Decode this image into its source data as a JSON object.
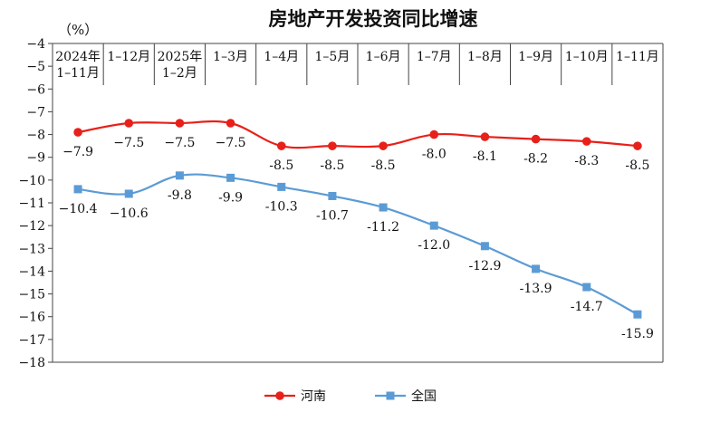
{
  "chart_data": {
    "type": "line",
    "title": "房地产开发投资同比增速",
    "unit_label": "（%）",
    "categories": [
      [
        "2024年",
        "1–11月"
      ],
      [
        "1–12月"
      ],
      [
        "2025年",
        "1–2月"
      ],
      [
        "1–3月"
      ],
      [
        "1–4月"
      ],
      [
        "1–5月"
      ],
      [
        "1–6月"
      ],
      [
        "1–7月"
      ],
      [
        "1–8月"
      ],
      [
        "1–9月"
      ],
      [
        "1–10月"
      ],
      [
        "1–11月"
      ]
    ],
    "ylim": [
      -18,
      -4
    ],
    "yticks": [
      -4,
      -5,
      -6,
      -7,
      -8,
      -9,
      -10,
      -11,
      -12,
      -13,
      -14,
      -15,
      -16,
      -17,
      -18
    ],
    "ytick_labels": [
      "−4",
      "−5",
      "−6",
      "−7",
      "−8",
      "−9",
      "−10",
      "−11",
      "−12",
      "−13",
      "−14",
      "−15",
      "−16",
      "−17",
      "−18"
    ],
    "series": [
      {
        "name": "河南",
        "color": "#e8201a",
        "marker": "circle",
        "values": [
          -7.9,
          -7.5,
          -7.5,
          -7.5,
          -8.5,
          -8.5,
          -8.5,
          -8.0,
          -8.1,
          -8.2,
          -8.3,
          -8.5
        ],
        "labels": [
          "−7.9",
          "−7.5",
          "−7.5",
          "−7.5",
          "-8.5",
          "-8.5",
          "-8.5",
          "-8.0",
          "-8.1",
          "-8.2",
          "-8.3",
          "-8.5"
        ]
      },
      {
        "name": "全国",
        "color": "#5b9bd5",
        "marker": "square",
        "values": [
          -10.4,
          -10.6,
          -9.8,
          -9.9,
          -10.3,
          -10.7,
          -11.2,
          -12.0,
          -12.9,
          -13.9,
          -14.7,
          -15.9
        ],
        "labels": [
          "−10.4",
          "−10.6",
          "-9.8",
          "-9.9",
          "-10.3",
          "-10.7",
          "-11.2",
          "-12.0",
          "-12.9",
          "-13.9",
          "-14.7",
          "-15.9"
        ]
      }
    ],
    "legend_position": "bottom-center"
  }
}
